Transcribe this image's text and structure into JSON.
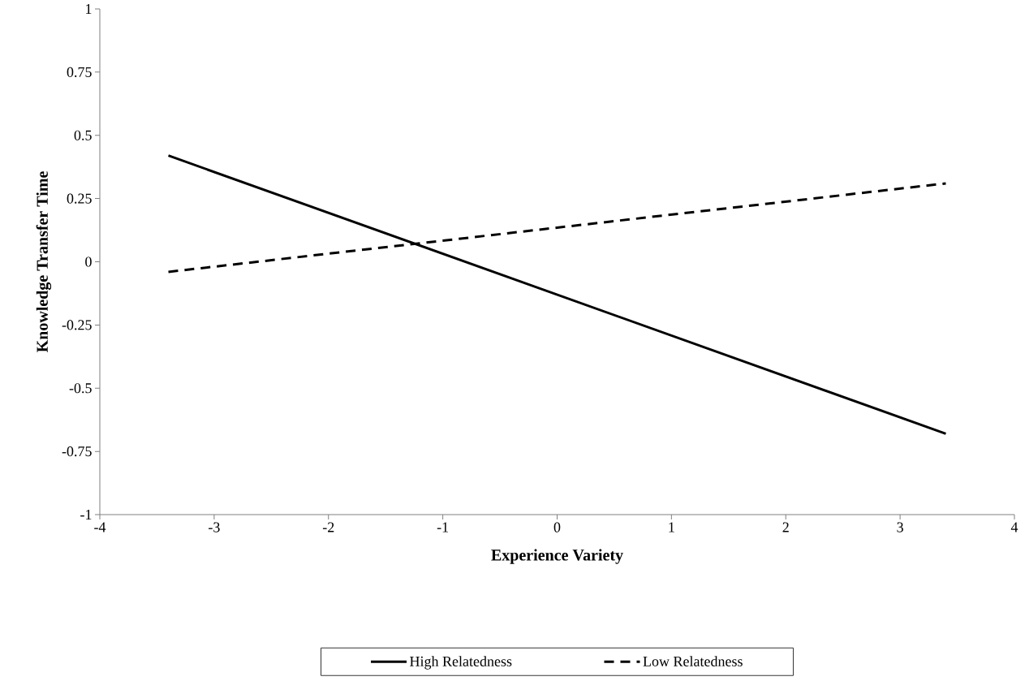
{
  "chart_data": {
    "type": "line",
    "xlabel": "Experience Variety",
    "ylabel": "Knowledge Transfer Time",
    "x": [
      -3.4,
      3.4
    ],
    "series": [
      {
        "name": "High Relatedness",
        "color": "#000000",
        "values": [
          0.42,
          -0.68
        ],
        "line_style": "solid"
      },
      {
        "name": "Low Relatedness",
        "color": "#000000",
        "values": [
          -0.04,
          0.31
        ],
        "line_style": "dashed"
      }
    ],
    "xlim": [
      -4,
      4
    ],
    "ylim": [
      -1,
      1
    ],
    "xticks": [
      -4,
      -3,
      -2,
      -1,
      0,
      1,
      2,
      3,
      4
    ],
    "yticks": [
      -1,
      -0.75,
      -0.5,
      -0.25,
      0,
      0.25,
      0.5,
      0.75,
      1
    ],
    "legend": "bottom"
  }
}
